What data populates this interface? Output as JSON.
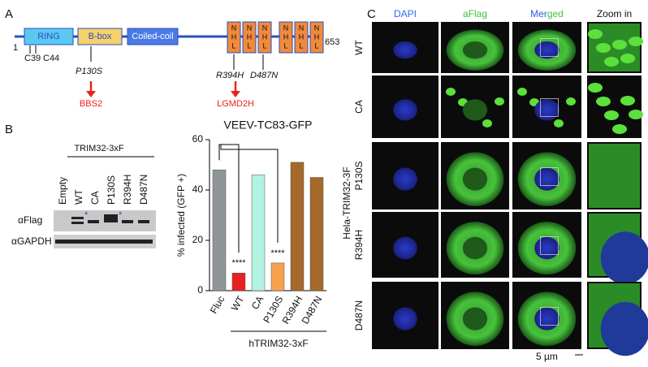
{
  "panel_labels": [
    "A",
    "B",
    "C"
  ],
  "panel_a": {
    "domains": [
      "RING",
      "B-box",
      "Coiled-coil"
    ],
    "nhl_letters": [
      "N",
      "H",
      "L"
    ],
    "start": "1",
    "end": "653",
    "mutations": [
      "C39",
      "C44",
      "P130S",
      "R394H",
      "D487N"
    ],
    "diseases": [
      "BBS2",
      "LGMD2H"
    ]
  },
  "panel_b_blot": {
    "construct": "TRIM32-3xF",
    "lanes": [
      "Empty",
      "WT",
      "CA",
      "P130S",
      "R394H",
      "D487N"
    ],
    "rows": [
      "αFlag",
      "αGAPDH"
    ],
    "marker": "*"
  },
  "chart_data": {
    "type": "bar",
    "title": "VEEV-TC83-GFP",
    "y_label": "% infected (GFP +)",
    "categories": [
      "Fluc",
      "WT",
      "CA",
      "P130S",
      "R394H",
      "D487N"
    ],
    "values": [
      48,
      7,
      46,
      11,
      51,
      45
    ],
    "colors": [
      "#8f9697",
      "#e8231f",
      "#b3f2e3",
      "#f6a24e",
      "#a5692c",
      "#a5692c"
    ],
    "significance": [
      null,
      "****",
      null,
      "****",
      null,
      null
    ],
    "group_label": "hTRIM32-3xF",
    "ylim": [
      0,
      60
    ],
    "yticks": [
      0,
      20,
      40,
      60
    ]
  },
  "panel_c": {
    "columns": [
      "DAPI",
      "aFlag",
      "Merged",
      "Zoom in"
    ],
    "rows": [
      "WT",
      "CA",
      "P130S",
      "R394H",
      "D487N"
    ],
    "cell_line": "Hela-TRIM32-3F",
    "scale": "5 µm"
  }
}
